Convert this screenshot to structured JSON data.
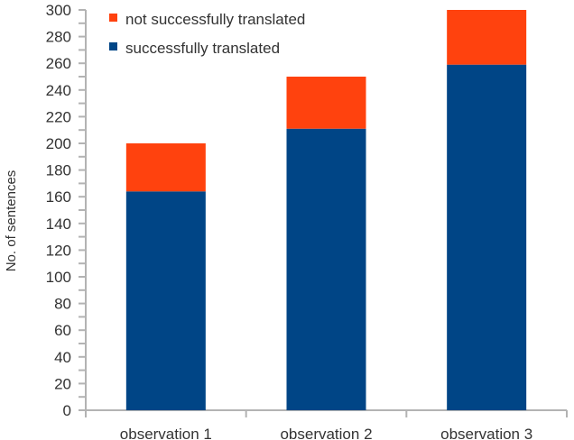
{
  "chart_data": {
    "type": "bar",
    "stacked": true,
    "title": "",
    "xlabel": "",
    "ylabel": "No. of sentences",
    "ylim": [
      0,
      300
    ],
    "yticks": [
      0,
      20,
      40,
      60,
      80,
      100,
      120,
      140,
      160,
      180,
      200,
      220,
      240,
      260,
      280,
      300
    ],
    "minor_tick_step": 10,
    "grid": false,
    "legend_position": "top-left inside",
    "categories": [
      "observation 1",
      "observation 2",
      "observation 3"
    ],
    "series": [
      {
        "name": "successfully translated",
        "color": "#004586",
        "values": [
          164,
          211,
          259
        ]
      },
      {
        "name": "not successfully translated",
        "color": "#ff420e",
        "values": [
          36,
          39,
          41
        ]
      }
    ],
    "totals": [
      200,
      250,
      300
    ]
  },
  "legend": {
    "items": [
      {
        "label": "not successfully translated",
        "color": "#ff420e"
      },
      {
        "label": "successfully translated",
        "color": "#004586"
      }
    ]
  },
  "colors": {
    "axis": "#b3b3b3",
    "text": "#333333",
    "background": "#ffffff"
  }
}
